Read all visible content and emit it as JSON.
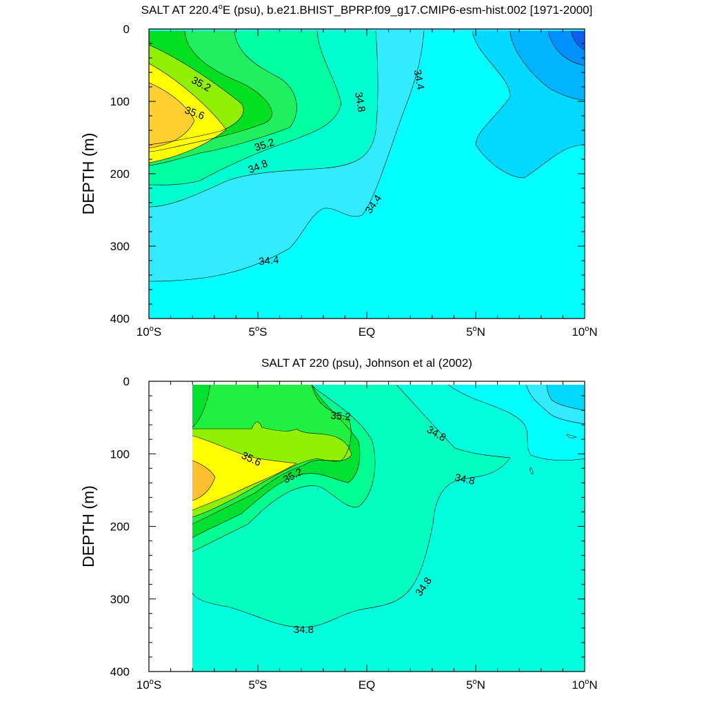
{
  "chart_data": [
    {
      "type": "contour",
      "title": "SALT AT 220.4°E (psu), b.e21.BHIST_BPRP.f09_g17.CMIP6-esm-hist.002 [1971-2000]",
      "title_main": "SALT AT 220.4",
      "title_deg": "o",
      "title_rest": "E (psu), b.e21.BHIST_BPRP.f09_g17.CMIP6-esm-hist.002 [1971-2000]",
      "ylabel": "DEPTH (m)",
      "xlim": [
        -10,
        10
      ],
      "ylim": [
        400,
        0
      ],
      "y_reversed": true,
      "x_ticks": [
        {
          "value": -10,
          "main": "10",
          "deg": "o",
          "suffix": "S"
        },
        {
          "value": -5,
          "main": "5",
          "deg": "o",
          "suffix": "S"
        },
        {
          "value": 0,
          "main": "EQ",
          "deg": "",
          "suffix": ""
        },
        {
          "value": 5,
          "main": "5",
          "deg": "o",
          "suffix": "N"
        },
        {
          "value": 10,
          "main": "10",
          "deg": "o",
          "suffix": "N"
        }
      ],
      "y_ticks": [
        "0",
        "100",
        "200",
        "300",
        "400"
      ],
      "y_tick_values": [
        0,
        100,
        200,
        300,
        400
      ],
      "contour_labels": [
        {
          "text": "35.2",
          "x": -7.6,
          "y": 76,
          "angle": 28
        },
        {
          "text": "35.6",
          "x": -7.9,
          "y": 116,
          "angle": 20
        },
        {
          "text": "35.2",
          "x": -4.7,
          "y": 160,
          "angle": -18
        },
        {
          "text": "34.8",
          "x": -5.0,
          "y": 190,
          "angle": -22
        },
        {
          "text": "34.8",
          "x": -0.3,
          "y": 101,
          "angle": 80
        },
        {
          "text": "34.4",
          "x": 2.4,
          "y": 70,
          "angle": 80
        },
        {
          "text": "34.4",
          "x": 0.3,
          "y": 242,
          "angle": -55
        },
        {
          "text": "34.4",
          "x": -4.5,
          "y": 320,
          "angle": -5
        }
      ]
    },
    {
      "type": "contour",
      "title": "SALT AT 220 (psu), Johnson et al (2002)",
      "ylabel": "DEPTH (m)",
      "xlim": [
        -10,
        10
      ],
      "ylim": [
        400,
        0
      ],
      "y_reversed": true,
      "x_ticks": [
        {
          "value": -10,
          "main": "10",
          "deg": "o",
          "suffix": "S"
        },
        {
          "value": -5,
          "main": "5",
          "deg": "o",
          "suffix": "S"
        },
        {
          "value": 0,
          "main": "EQ",
          "deg": "",
          "suffix": ""
        },
        {
          "value": 5,
          "main": "5",
          "deg": "o",
          "suffix": "N"
        },
        {
          "value": 10,
          "main": "10",
          "deg": "o",
          "suffix": "N"
        }
      ],
      "y_ticks": [
        "0",
        "100",
        "200",
        "300",
        "400"
      ],
      "y_tick_values": [
        0,
        100,
        200,
        300,
        400
      ],
      "contour_labels": [
        {
          "text": "35.2",
          "x": -1.2,
          "y": 48,
          "angle": 5
        },
        {
          "text": "35.6",
          "x": -5.3,
          "y": 107,
          "angle": 25
        },
        {
          "text": "35.2",
          "x": -3.4,
          "y": 130,
          "angle": -28
        },
        {
          "text": "34.8",
          "x": 3.2,
          "y": 72,
          "angle": 30
        },
        {
          "text": "34.8",
          "x": 4.5,
          "y": 135,
          "angle": 12
        },
        {
          "text": "34.8",
          "x": 2.6,
          "y": 283,
          "angle": -55
        },
        {
          "text": "34.8",
          "x": -2.9,
          "y": 342,
          "angle": 0
        }
      ]
    }
  ]
}
